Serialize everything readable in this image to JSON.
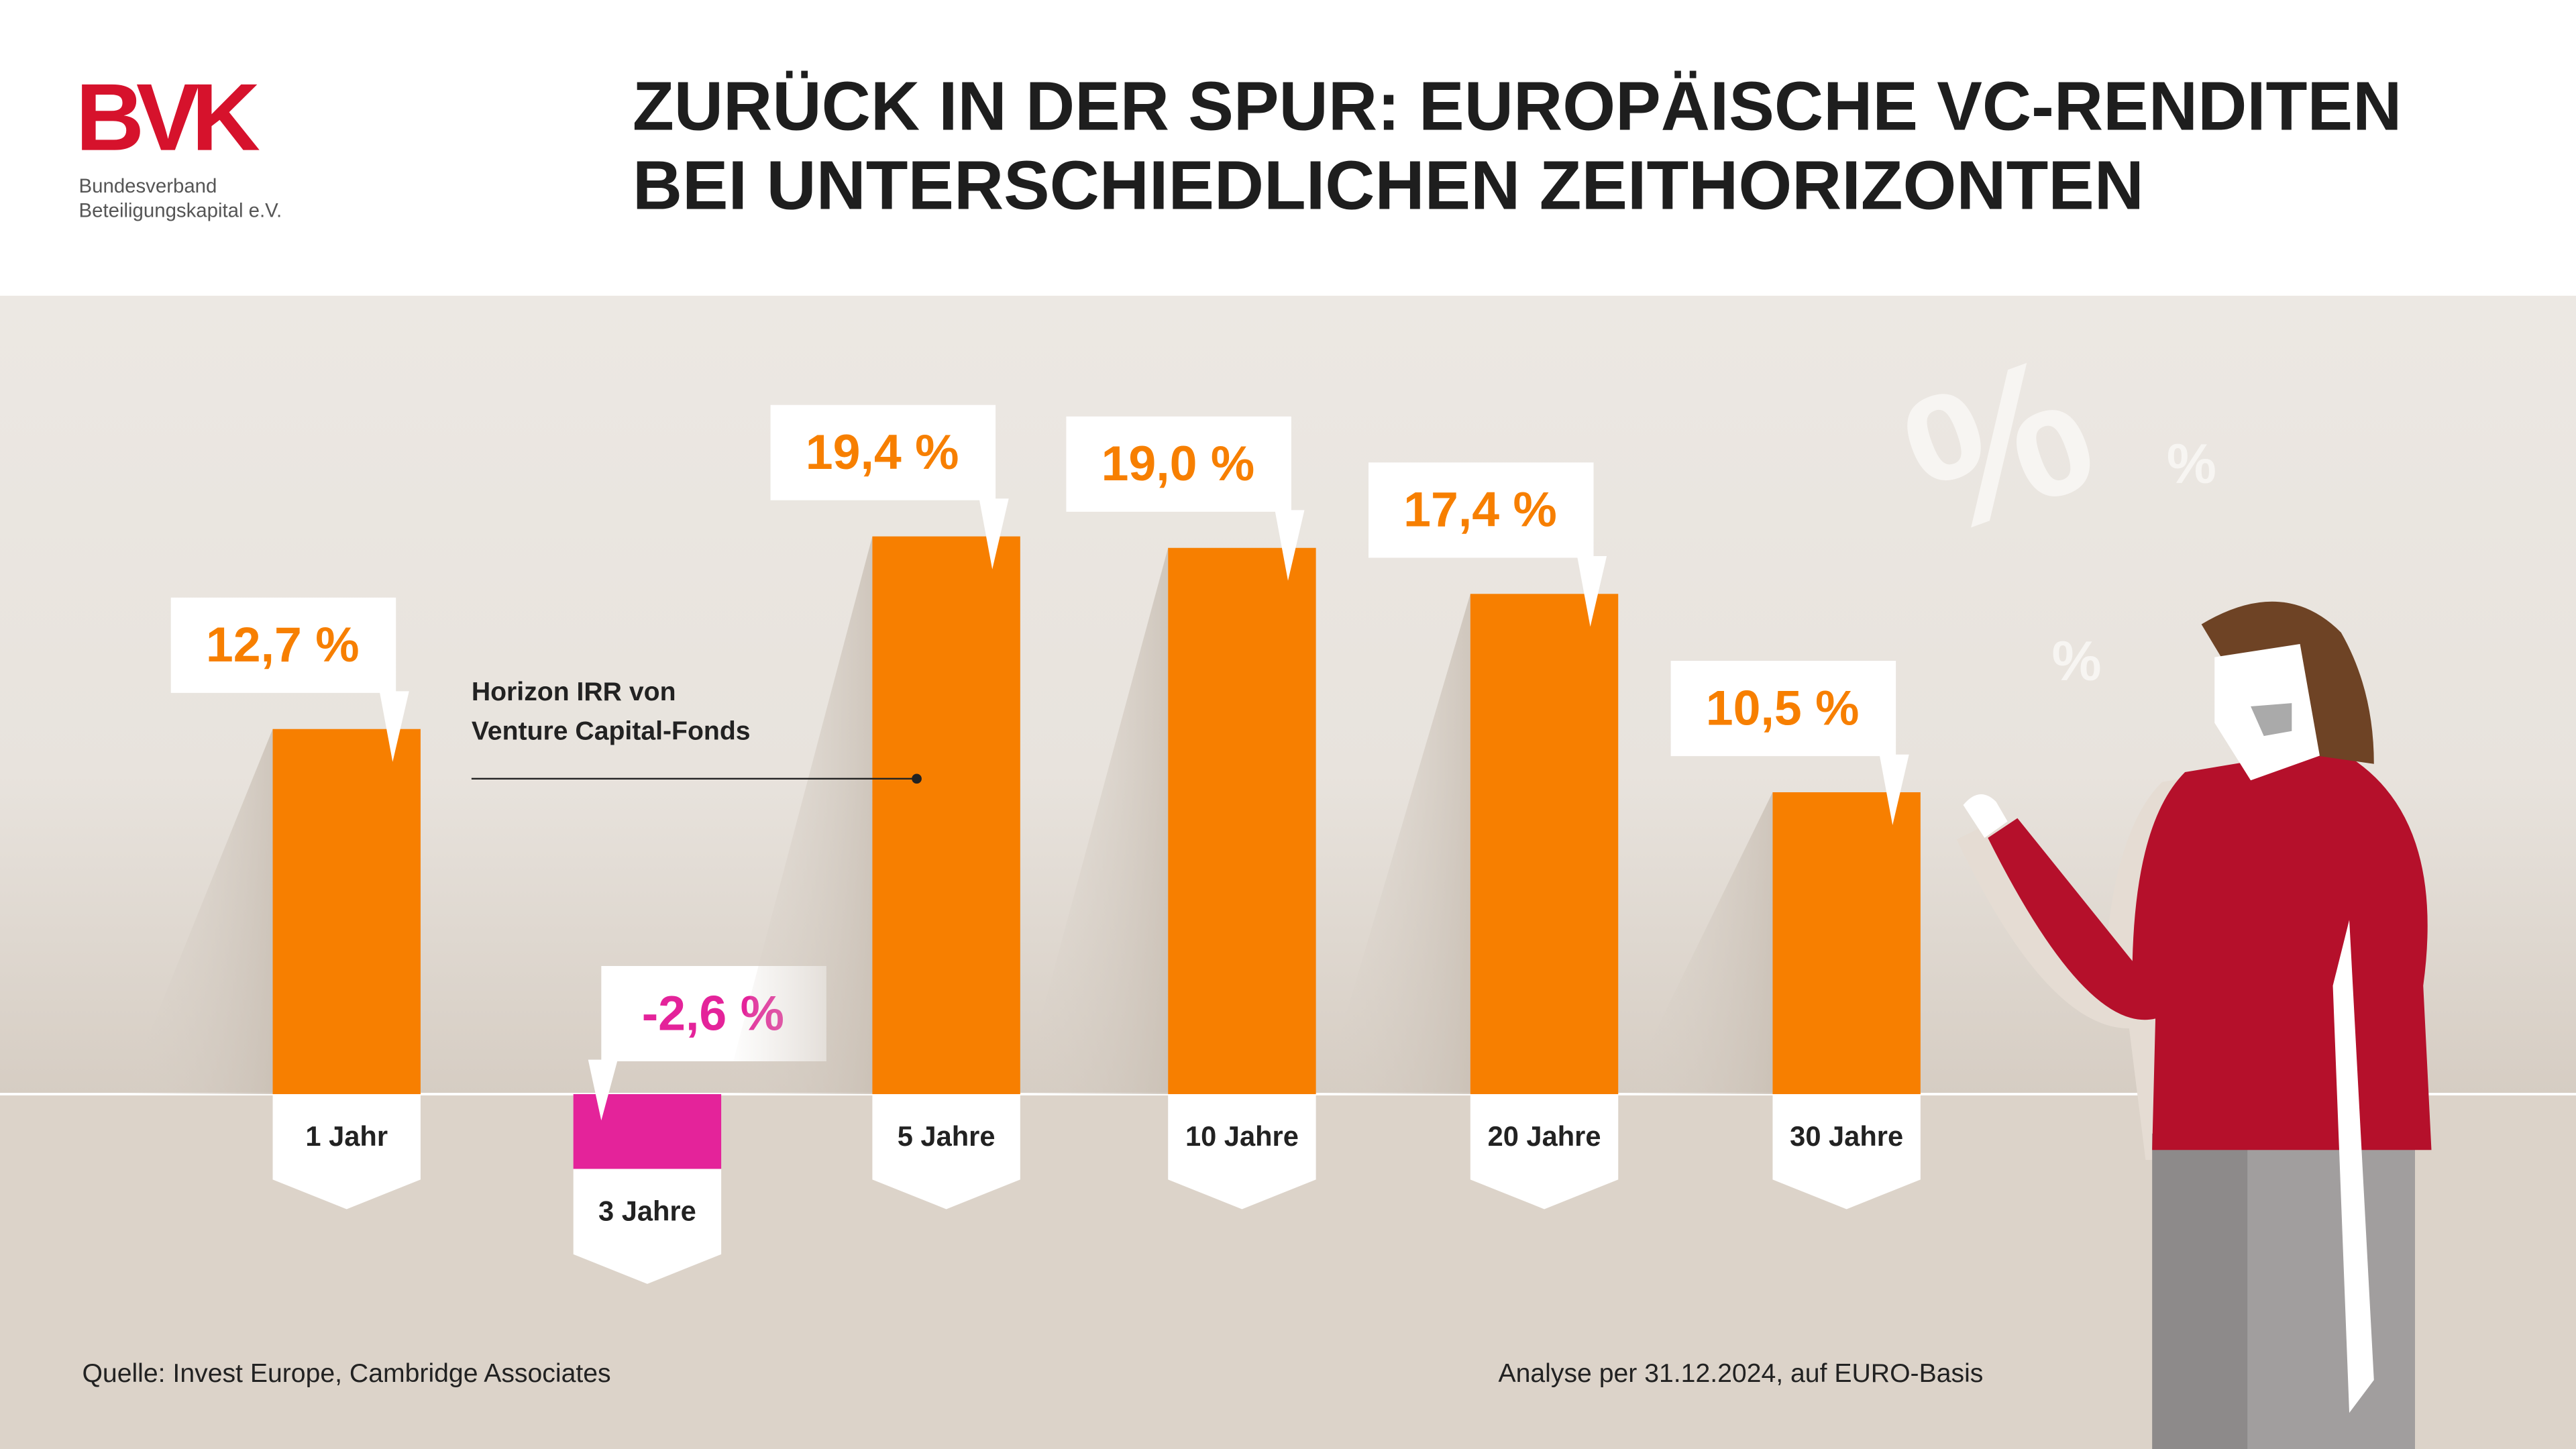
{
  "logo": {
    "text": "BVK",
    "lines": [
      "Bundesverband",
      "Beteiligungskapital e.V."
    ]
  },
  "chart_data": {
    "type": "bar",
    "title": [
      "ZURÜCK IN DER SPUR: EUROPÄISCHE VC-RENDITEN",
      "BEI UNTERSCHIEDLICHEN ZEITHORIZONTEN"
    ],
    "annotation": [
      "Horizon IRR von",
      "Venture Capital-Fonds"
    ],
    "categories": [
      "1 Jahr",
      "3 Jahre",
      "5 Jahre",
      "10 Jahre",
      "20 Jahre",
      "30 Jahre"
    ],
    "values": [
      12.7,
      -2.6,
      19.4,
      19.0,
      17.4,
      10.5
    ],
    "value_labels": [
      "12,7 %",
      "-2,6 %",
      "19,4 %",
      "19,0 %",
      "17,4 %",
      "10,5 %"
    ],
    "color": "#f77f00",
    "negative_color": "#e4239a"
  },
  "decoration": [
    "%",
    "%",
    "%"
  ],
  "footer": {
    "source": "Quelle: Invest Europe, Cambridge Associates",
    "note": "Analyse per 31.12.2024, auf EURO-Basis"
  }
}
